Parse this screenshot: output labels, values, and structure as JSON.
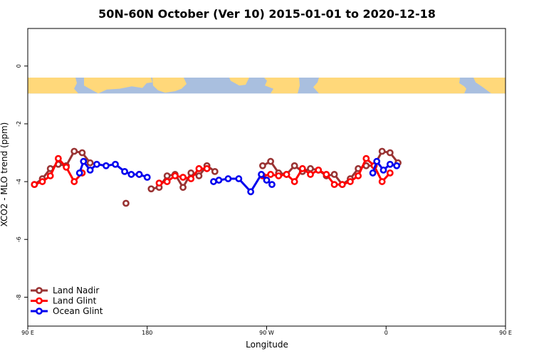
{
  "chart_data": {
    "type": "line",
    "title": "50N-60N October (Ver 10)   2015-01-01 to 2020-12-18",
    "xlabel": "Longitude",
    "ylabel": "XCO2 - MLO trend (ppm)",
    "xlim": [
      90,
      450
    ],
    "ylim": [
      -9,
      1.3
    ],
    "x_ticks": [
      {
        "value": 90,
        "label": "90 E"
      },
      {
        "value": 180,
        "label": "180"
      },
      {
        "value": 270,
        "label": "90 W"
      },
      {
        "value": 360,
        "label": "0"
      },
      {
        "value": 450,
        "label": "90 E"
      },
      {
        "value": 540,
        "label": "180"
      }
    ],
    "y_ticks": [
      {
        "value": 0,
        "label": "0"
      },
      {
        "value": -2,
        "label": "-2"
      },
      {
        "value": -4,
        "label": "-4"
      },
      {
        "value": -6,
        "label": "-6"
      },
      {
        "value": -8,
        "label": "-8"
      }
    ],
    "map_band": {
      "y_top": -0.4,
      "y_bottom": -0.95,
      "ocean_color": "#a9bfdf",
      "land_color": "#ffd87a"
    },
    "legend_position": "bottom-left",
    "series": [
      {
        "name": "Land Nadir",
        "color": "#993333",
        "segments": [
          [
            [
              95,
              -4.1
            ],
            [
              101,
              -3.9
            ],
            [
              107,
              -3.55
            ],
            [
              113,
              -3.4
            ],
            [
              119,
              -3.45
            ],
            [
              125,
              -2.95
            ],
            [
              131,
              -3.0
            ],
            [
              137,
              -3.35
            ]
          ],
          [
            [
              164,
              -4.75
            ]
          ],
          [
            [
              183,
              -4.25
            ],
            [
              189,
              -4.2
            ],
            [
              195,
              -3.8
            ],
            [
              201,
              -3.75
            ],
            [
              207,
              -4.2
            ],
            [
              213,
              -3.7
            ],
            [
              219,
              -3.8
            ],
            [
              225,
              -3.45
            ],
            [
              231,
              -3.65
            ]
          ],
          [
            [
              267,
              -3.45
            ],
            [
              273,
              -3.3
            ],
            [
              279,
              -3.7
            ],
            [
              285,
              -3.75
            ],
            [
              291,
              -3.45
            ],
            [
              297,
              -3.65
            ],
            [
              303,
              -3.55
            ],
            [
              309,
              -3.6
            ],
            [
              315,
              -3.8
            ],
            [
              321,
              -3.75
            ],
            [
              327,
              -4.1
            ],
            [
              333,
              -3.9
            ],
            [
              339,
              -3.55
            ],
            [
              345,
              -3.45
            ],
            [
              351,
              -3.45
            ],
            [
              357,
              -2.95
            ],
            [
              363,
              -3.0
            ],
            [
              369,
              -3.35
            ]
          ]
        ]
      },
      {
        "name": "Land Glint",
        "color": "#ff0000",
        "segments": [
          [
            [
              95,
              -4.1
            ],
            [
              101,
              -4.0
            ],
            [
              107,
              -3.8
            ],
            [
              113,
              -3.2
            ],
            [
              119,
              -3.5
            ],
            [
              125,
              -4.0
            ],
            [
              131,
              -3.7
            ]
          ],
          [
            [
              174,
              -3.75
            ]
          ],
          [
            [
              189,
              -4.05
            ],
            [
              195,
              -4.0
            ],
            [
              201,
              -3.8
            ],
            [
              207,
              -3.85
            ],
            [
              213,
              -3.9
            ],
            [
              219,
              -3.55
            ],
            [
              225,
              -3.55
            ]
          ],
          [
            [
              267,
              -3.8
            ],
            [
              273,
              -3.75
            ],
            [
              279,
              -3.8
            ],
            [
              285,
              -3.75
            ],
            [
              291,
              -4.0
            ],
            [
              297,
              -3.55
            ],
            [
              303,
              -3.75
            ],
            [
              309,
              -3.6
            ],
            [
              315,
              -3.75
            ],
            [
              321,
              -4.1
            ],
            [
              327,
              -4.1
            ],
            [
              333,
              -4.0
            ],
            [
              339,
              -3.8
            ],
            [
              345,
              -3.2
            ],
            [
              351,
              -3.45
            ],
            [
              357,
              -4.0
            ],
            [
              363,
              -3.7
            ]
          ]
        ]
      },
      {
        "name": "Ocean Glint",
        "color": "#0000ee",
        "segments": [
          [
            [
              129,
              -3.7
            ],
            [
              132,
              -3.3
            ],
            [
              137,
              -3.6
            ],
            [
              142,
              -3.4
            ],
            [
              149,
              -3.45
            ],
            [
              156,
              -3.4
            ],
            [
              163,
              -3.65
            ],
            [
              168,
              -3.75
            ],
            [
              174,
              -3.75
            ],
            [
              180,
              -3.85
            ]
          ],
          [
            [
              230,
              -4.0
            ],
            [
              234,
              -3.95
            ],
            [
              241,
              -3.9
            ],
            [
              249,
              -3.9
            ],
            [
              258,
              -4.35
            ],
            [
              266,
              -3.75
            ],
            [
              270,
              -3.95
            ],
            [
              274,
              -4.1
            ]
          ],
          [
            [
              350,
              -3.7
            ],
            [
              353,
              -3.3
            ],
            [
              358,
              -3.6
            ],
            [
              363,
              -3.4
            ],
            [
              368,
              -3.45
            ]
          ]
        ]
      }
    ]
  }
}
